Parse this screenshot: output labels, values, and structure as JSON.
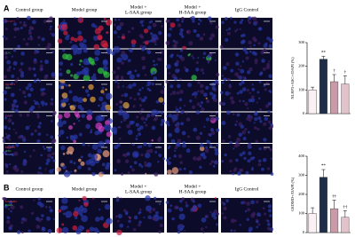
{
  "panel_a": {
    "label": "A",
    "columns": [
      [
        "Control group"
      ],
      [
        "Model group"
      ],
      [
        "Model +",
        "L-SAA group"
      ],
      [
        "Model +",
        "H-SAA group"
      ],
      [
        "IgG Control"
      ]
    ],
    "row_labels": [
      [
        "NLRP3"
      ],
      [
        "ASC"
      ],
      [
        "NLRP3",
        "ASC"
      ],
      [
        "DAPI"
      ],
      [
        "NLRP3",
        "ASC",
        "DAPI"
      ]
    ]
  },
  "panel_b": {
    "label": "B",
    "columns": [
      [
        "Control group"
      ],
      [
        "Model group"
      ],
      [
        "Model +",
        "L-SAA group"
      ],
      [
        "Model +",
        "H-SAA group"
      ],
      [
        "IgG Control"
      ]
    ],
    "row_labels": [
      [
        "GSDMD",
        "DAPI"
      ]
    ]
  },
  "chart_data": [
    {
      "type": "bar",
      "y_label": "NLRP3+ASC+/DAPI (%)",
      "values": [
        100,
        230,
        135,
        125
      ],
      "errors": [
        12,
        12,
        30,
        35
      ],
      "significance": [
        null,
        "**",
        "†",
        "†"
      ],
      "colors": [
        "#fbf0f2",
        "#1e2d48",
        "#c99aa8",
        "#e3c3cb"
      ],
      "ylim": [
        0,
        300
      ],
      "yticks": [
        0,
        100,
        200,
        300
      ]
    },
    {
      "type": "bar",
      "y_label": "GSDMD+/DAPI (%)",
      "values": [
        100,
        290,
        125,
        80
      ],
      "errors": [
        30,
        40,
        45,
        35
      ],
      "significance": [
        null,
        "**",
        "††",
        "††"
      ],
      "colors": [
        "#fbf0f2",
        "#1e2d48",
        "#c99aa8",
        "#e3c3cb"
      ],
      "ylim": [
        0,
        400
      ],
      "yticks": [
        0,
        100,
        200,
        300,
        400
      ]
    }
  ]
}
